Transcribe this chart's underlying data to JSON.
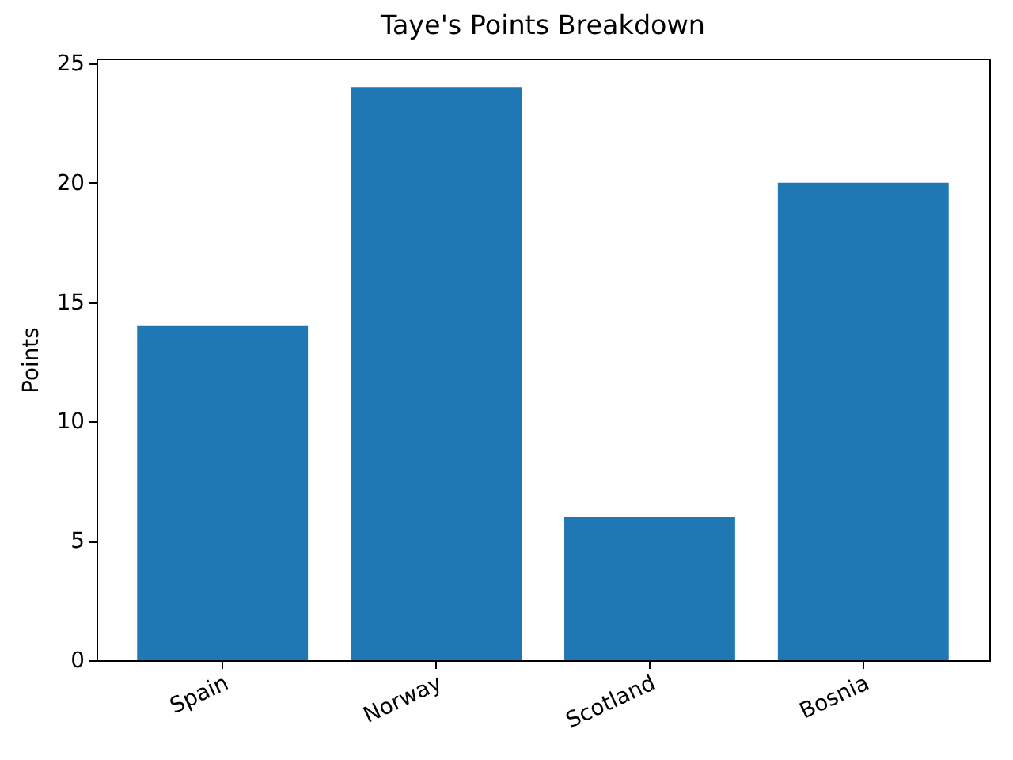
{
  "chart_data": {
    "type": "bar",
    "title": "Taye's Points Breakdown",
    "ylabel": "Points",
    "categories": [
      "Spain",
      "Norway",
      "Scotland",
      "Bosnia"
    ],
    "values": [
      14,
      24,
      6,
      20
    ],
    "color": "#1f77b4",
    "ylim": [
      0,
      25.2
    ],
    "yticks": [
      0,
      5,
      10,
      15,
      20,
      25
    ],
    "grid": false
  }
}
